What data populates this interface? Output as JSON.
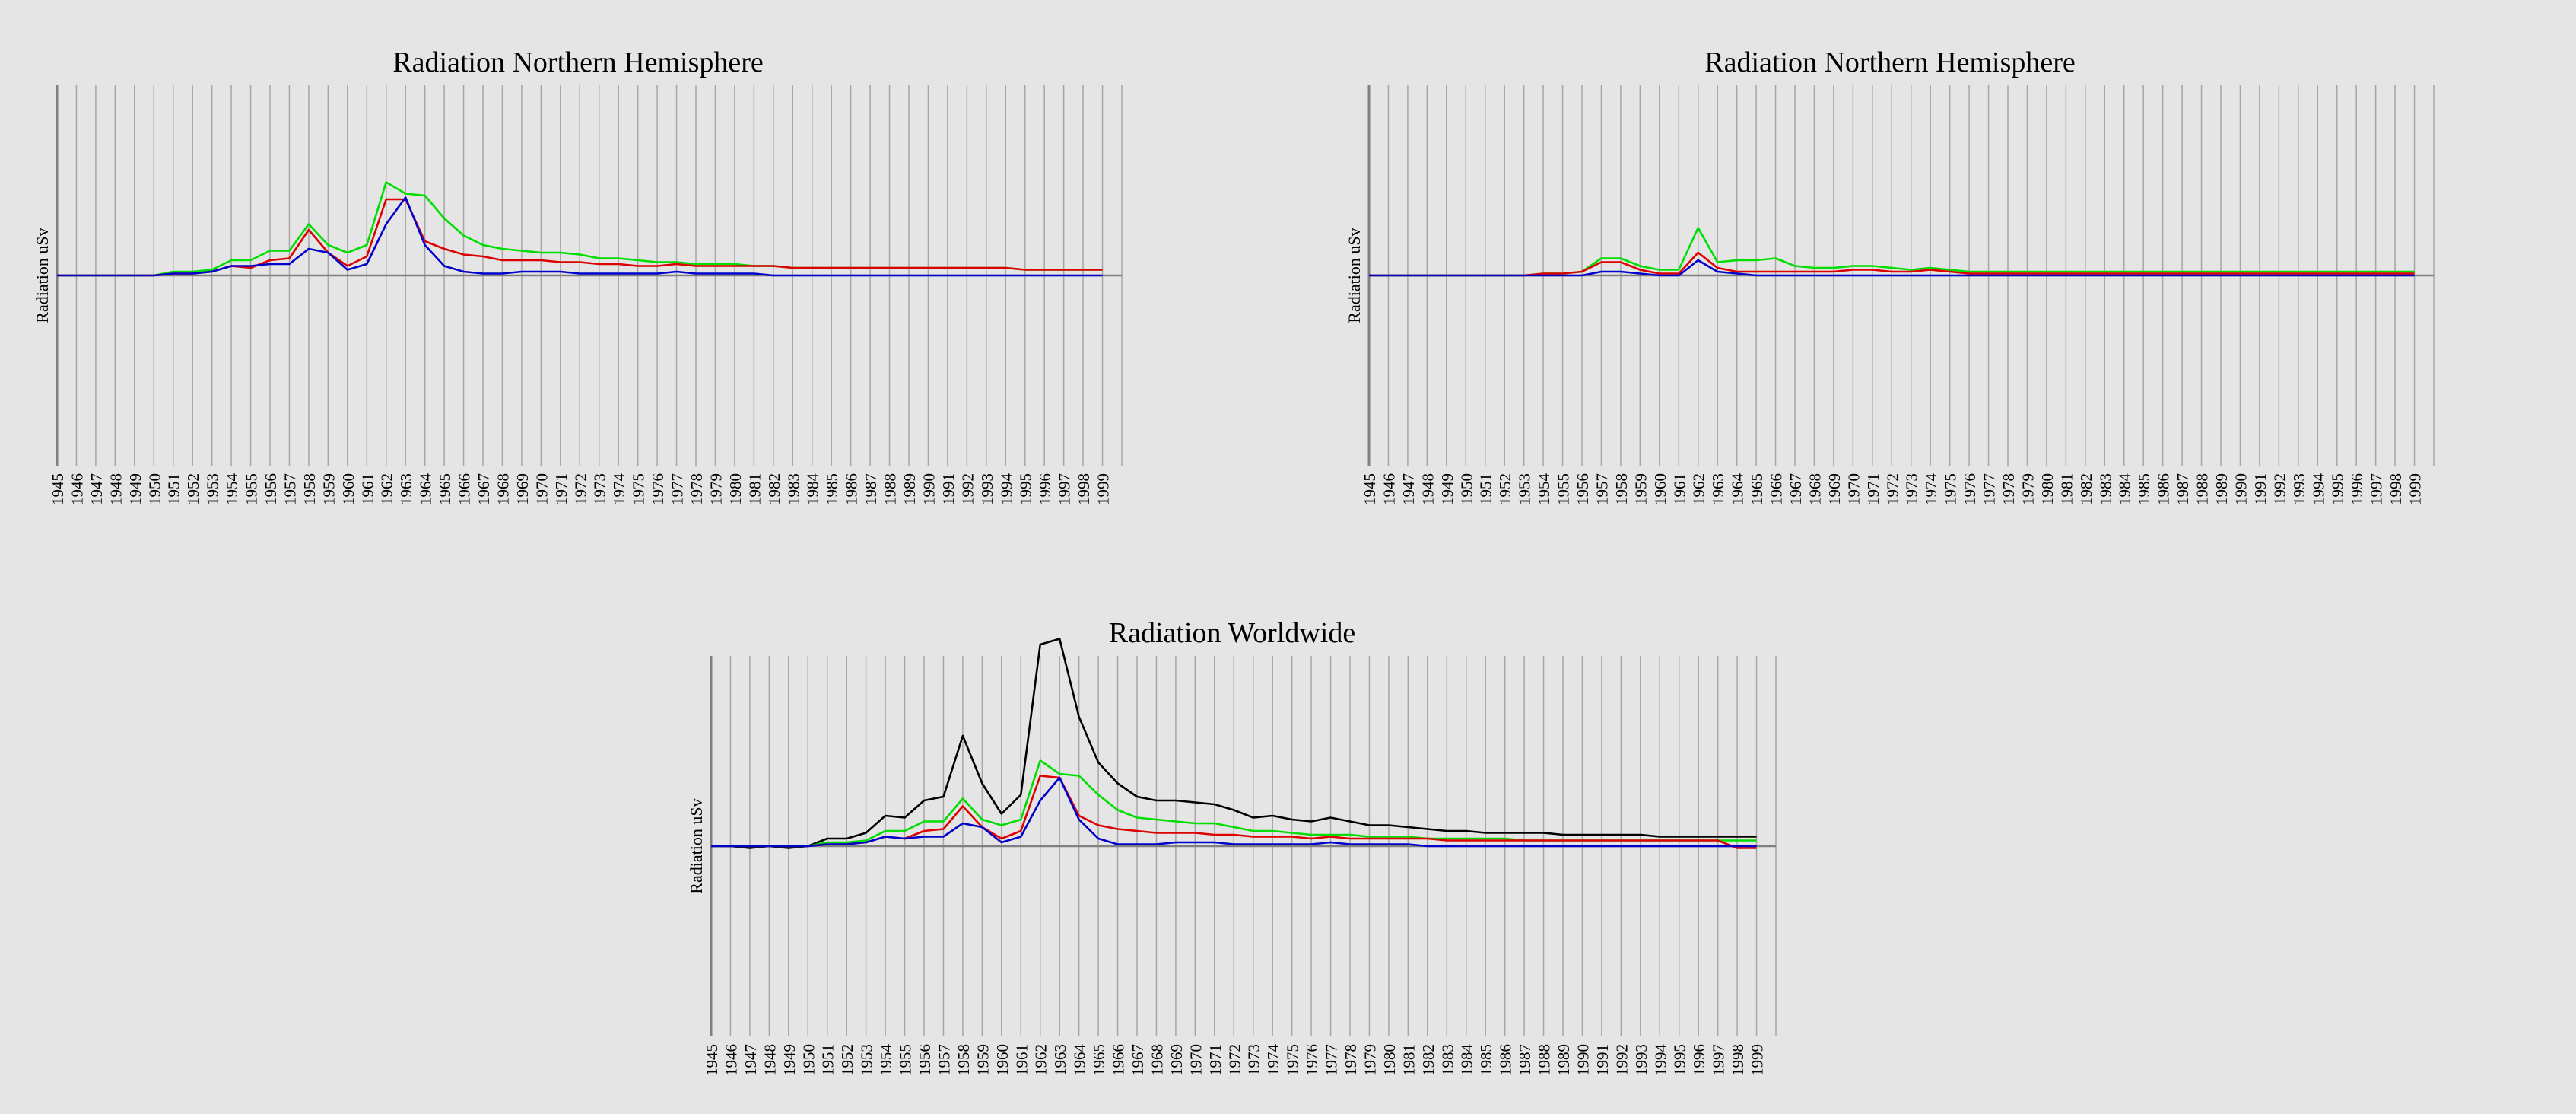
{
  "colors": {
    "background": "#e5e5e5",
    "gridline": "#a6a6a6",
    "axis": "#808080",
    "zero_line": "#808080"
  },
  "chart_data": [
    {
      "type": "line",
      "title": "Radiation Northern Hemisphere",
      "xlabel": "",
      "ylabel": "Radiation uSv",
      "grid": true,
      "x": [
        "1945",
        "1946",
        "1947",
        "1948",
        "1949",
        "1950",
        "1951",
        "1952",
        "1953",
        "1954",
        "1955",
        "1956",
        "1957",
        "1958",
        "1959",
        "1960",
        "1961",
        "1962",
        "1963",
        "1964",
        "1965",
        "1966",
        "1967",
        "1968",
        "1969",
        "1970",
        "1971",
        "1972",
        "1973",
        "1974",
        "1975",
        "1976",
        "1977",
        "1978",
        "1979",
        "1980",
        "1981",
        "1982",
        "1983",
        "1984",
        "1985",
        "1986",
        "1987",
        "1988",
        "1989",
        "1990",
        "1991",
        "1992",
        "1993",
        "1994",
        "1995",
        "1996",
        "1997",
        "1998",
        "1999"
      ],
      "ylim": [
        -100,
        100
      ],
      "series": [
        {
          "color": "#00dd00",
          "values": [
            0,
            0,
            0,
            0,
            0,
            0,
            2,
            2,
            3,
            8,
            8,
            13,
            13,
            27,
            16,
            12,
            16,
            49,
            43,
            42,
            30,
            21,
            16,
            14,
            13,
            12,
            12,
            11,
            9,
            9,
            8,
            7,
            7,
            6,
            6,
            6,
            5,
            5,
            4,
            4,
            4,
            4,
            4,
            4,
            4,
            4,
            4,
            4,
            4,
            4,
            3,
            3,
            3,
            3,
            3
          ]
        },
        {
          "color": "#dd0000",
          "values": [
            0,
            0,
            0,
            0,
            0,
            0,
            1,
            1,
            2,
            5,
            4,
            8,
            9,
            24,
            12,
            5,
            10,
            40,
            40,
            18,
            14,
            11,
            10,
            8,
            8,
            8,
            7,
            7,
            6,
            6,
            5,
            5,
            6,
            5,
            5,
            5,
            5,
            5,
            4,
            4,
            4,
            4,
            4,
            4,
            4,
            4,
            4,
            4,
            4,
            4,
            3,
            3,
            3,
            3,
            3
          ]
        },
        {
          "color": "#0000cc",
          "values": [
            0,
            0,
            0,
            0,
            0,
            0,
            1,
            1,
            2,
            5,
            5,
            6,
            6,
            14,
            12,
            3,
            6,
            27,
            41,
            16,
            5,
            2,
            1,
            1,
            2,
            2,
            2,
            1,
            1,
            1,
            1,
            1,
            2,
            1,
            1,
            1,
            1,
            0,
            0,
            0,
            0,
            0,
            0,
            0,
            0,
            0,
            0,
            0,
            0,
            0,
            0,
            0,
            0,
            0,
            0
          ]
        }
      ]
    },
    {
      "type": "line",
      "title": "Radiation Northern Hemisphere",
      "xlabel": "",
      "ylabel": "Radiation uSv",
      "grid": true,
      "x": [
        "1945",
        "1946",
        "1947",
        "1948",
        "1949",
        "1950",
        "1951",
        "1952",
        "1953",
        "1954",
        "1955",
        "1956",
        "1957",
        "1958",
        "1959",
        "1960",
        "1961",
        "1962",
        "1963",
        "1964",
        "1965",
        "1966",
        "1967",
        "1968",
        "1969",
        "1970",
        "1971",
        "1972",
        "1973",
        "1974",
        "1975",
        "1976",
        "1977",
        "1978",
        "1979",
        "1980",
        "1981",
        "1982",
        "1983",
        "1984",
        "1985",
        "1986",
        "1987",
        "1988",
        "1989",
        "1990",
        "1991",
        "1992",
        "1993",
        "1994",
        "1995",
        "1996",
        "1997",
        "1998",
        "1999"
      ],
      "ylim": [
        -100,
        100
      ],
      "series": [
        {
          "color": "#00dd00",
          "values": [
            0,
            0,
            0,
            0,
            0,
            0,
            0,
            0,
            0,
            1,
            1,
            2,
            9,
            9,
            5,
            3,
            3,
            25,
            7,
            8,
            8,
            9,
            5,
            4,
            4,
            5,
            5,
            4,
            3,
            4,
            3,
            2,
            2,
            2,
            2,
            2,
            2,
            2,
            2,
            2,
            2,
            2,
            2,
            2,
            2,
            2,
            2,
            2,
            2,
            2,
            2,
            2,
            2,
            2,
            2
          ]
        },
        {
          "color": "#dd0000",
          "values": [
            0,
            0,
            0,
            0,
            0,
            0,
            0,
            0,
            0,
            1,
            1,
            2,
            7,
            7,
            3,
            1,
            1,
            12,
            4,
            2,
            2,
            2,
            2,
            2,
            2,
            3,
            3,
            2,
            2,
            3,
            2,
            1,
            1,
            1,
            1,
            1,
            1,
            1,
            1,
            1,
            1,
            1,
            1,
            1,
            1,
            1,
            1,
            1,
            1,
            1,
            1,
            1,
            1,
            1,
            1
          ]
        },
        {
          "color": "#0000cc",
          "values": [
            0,
            0,
            0,
            0,
            0,
            0,
            0,
            0,
            0,
            0,
            0,
            0,
            2,
            2,
            1,
            0,
            0,
            8,
            2,
            1,
            0,
            0,
            0,
            0,
            0,
            0,
            0,
            0,
            0,
            0,
            0,
            0,
            0,
            0,
            0,
            0,
            0,
            0,
            0,
            0,
            0,
            0,
            0,
            0,
            0,
            0,
            0,
            0,
            0,
            0,
            0,
            0,
            0,
            0,
            0
          ]
        }
      ]
    },
    {
      "type": "line",
      "title": "Radiation Worldwide",
      "xlabel": "",
      "ylabel": "Radiation uSv",
      "grid": true,
      "x": [
        "1945",
        "1946",
        "1947",
        "1948",
        "1949",
        "1950",
        "1951",
        "1952",
        "1953",
        "1954",
        "1955",
        "1956",
        "1957",
        "1958",
        "1959",
        "1960",
        "1961",
        "1962",
        "1963",
        "1964",
        "1965",
        "1966",
        "1967",
        "1968",
        "1969",
        "1970",
        "1971",
        "1972",
        "1973",
        "1974",
        "1975",
        "1976",
        "1977",
        "1978",
        "1979",
        "1980",
        "1981",
        "1982",
        "1983",
        "1984",
        "1985",
        "1986",
        "1987",
        "1988",
        "1989",
        "1990",
        "1991",
        "1992",
        "1993",
        "1994",
        "1995",
        "1996",
        "1997",
        "1998",
        "1999"
      ],
      "ylim": [
        -100,
        100
      ],
      "series": [
        {
          "color": "#000000",
          "values": [
            0,
            0,
            -1,
            0,
            -1,
            0,
            4,
            4,
            7,
            16,
            15,
            24,
            26,
            58,
            33,
            17,
            27,
            106,
            109,
            68,
            44,
            33,
            26,
            24,
            24,
            23,
            22,
            19,
            15,
            16,
            14,
            13,
            15,
            13,
            11,
            11,
            10,
            9,
            8,
            8,
            7,
            7,
            7,
            7,
            6,
            6,
            6,
            6,
            6,
            5,
            5,
            5,
            5,
            5,
            5
          ]
        },
        {
          "color": "#00dd00",
          "values": [
            0,
            0,
            0,
            0,
            0,
            0,
            2,
            2,
            3,
            8,
            8,
            13,
            13,
            25,
            14,
            11,
            14,
            45,
            38,
            37,
            27,
            19,
            15,
            14,
            13,
            12,
            12,
            10,
            8,
            8,
            7,
            6,
            6,
            6,
            5,
            5,
            5,
            4,
            4,
            4,
            4,
            4,
            3,
            3,
            3,
            3,
            3,
            3,
            3,
            3,
            3,
            3,
            3,
            3,
            3
          ]
        },
        {
          "color": "#dd0000",
          "values": [
            0,
            0,
            0,
            0,
            0,
            0,
            1,
            1,
            2,
            5,
            4,
            8,
            9,
            21,
            10,
            4,
            8,
            37,
            36,
            16,
            11,
            9,
            8,
            7,
            7,
            7,
            6,
            6,
            5,
            5,
            5,
            4,
            5,
            4,
            4,
            4,
            4,
            4,
            3,
            3,
            3,
            3,
            3,
            3,
            3,
            3,
            3,
            3,
            3,
            3,
            3,
            3,
            3,
            -1,
            -1
          ]
        },
        {
          "color": "#0000cc",
          "values": [
            0,
            0,
            0,
            0,
            0,
            0,
            1,
            1,
            2,
            5,
            4,
            5,
            5,
            12,
            10,
            2,
            5,
            24,
            36,
            14,
            4,
            1,
            1,
            1,
            2,
            2,
            2,
            1,
            1,
            1,
            1,
            1,
            2,
            1,
            1,
            1,
            1,
            0,
            0,
            0,
            0,
            0,
            0,
            0,
            0,
            0,
            0,
            0,
            0,
            0,
            0,
            0,
            0,
            0,
            0
          ]
        }
      ]
    }
  ]
}
